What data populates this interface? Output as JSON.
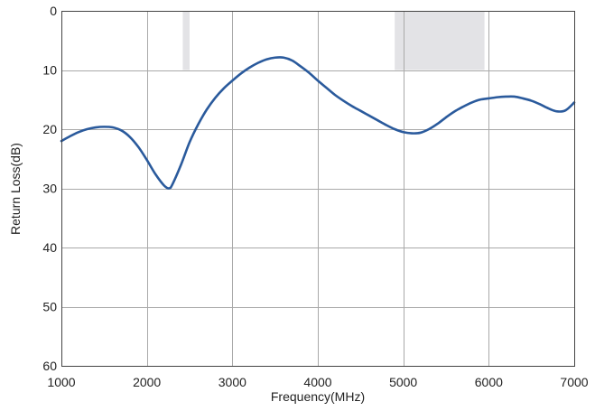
{
  "chart_data": {
    "type": "line",
    "title": "",
    "xlabel": "Frequency(MHz)",
    "ylabel": "Return Loss(dB)",
    "xlim": [
      1000,
      7000
    ],
    "ylim": [
      0,
      60
    ],
    "y_inverted": true,
    "x_ticks": [
      1000,
      2000,
      3000,
      4000,
      5000,
      6000,
      7000
    ],
    "y_ticks": [
      0,
      10,
      20,
      30,
      40,
      50,
      60
    ],
    "grid": true,
    "legend": "none",
    "line_color": "#2a5a9c",
    "band_color": "#e3e3e6",
    "shaded_bands": [
      {
        "x": [
          2420,
          2500
        ],
        "y": [
          0,
          10
        ]
      },
      {
        "x": [
          4900,
          5950
        ],
        "y": [
          0,
          10
        ]
      }
    ],
    "series": [
      {
        "x": [
          1000,
          1100,
          1200,
          1300,
          1400,
          1500,
          1600,
          1700,
          1800,
          1900,
          2000,
          2100,
          2200,
          2260,
          2300,
          2400,
          2500,
          2600,
          2700,
          2800,
          2900,
          3000,
          3100,
          3200,
          3300,
          3400,
          3500,
          3600,
          3700,
          3800,
          3900,
          4000,
          4100,
          4200,
          4300,
          4400,
          4500,
          4600,
          4700,
          4800,
          4900,
          5000,
          5100,
          5200,
          5300,
          5400,
          5500,
          5600,
          5700,
          5800,
          5900,
          6000,
          6100,
          6200,
          6300,
          6400,
          6500,
          6600,
          6700,
          6800,
          6900,
          7000
        ],
        "values": [
          22.0,
          21.2,
          20.5,
          20.0,
          19.7,
          19.6,
          19.7,
          20.2,
          21.3,
          23.0,
          25.2,
          27.6,
          29.5,
          30.0,
          29.3,
          26.0,
          22.2,
          19.2,
          16.7,
          14.7,
          13.1,
          11.8,
          10.6,
          9.6,
          8.8,
          8.2,
          7.9,
          7.9,
          8.4,
          9.4,
          10.5,
          11.8,
          13.0,
          14.2,
          15.2,
          16.1,
          16.9,
          17.7,
          18.5,
          19.3,
          20.0,
          20.5,
          20.7,
          20.6,
          20.0,
          19.1,
          18.0,
          17.0,
          16.2,
          15.5,
          15.0,
          14.8,
          14.6,
          14.5,
          14.5,
          14.8,
          15.2,
          15.8,
          16.5,
          17.0,
          16.8,
          15.5
        ]
      }
    ]
  }
}
